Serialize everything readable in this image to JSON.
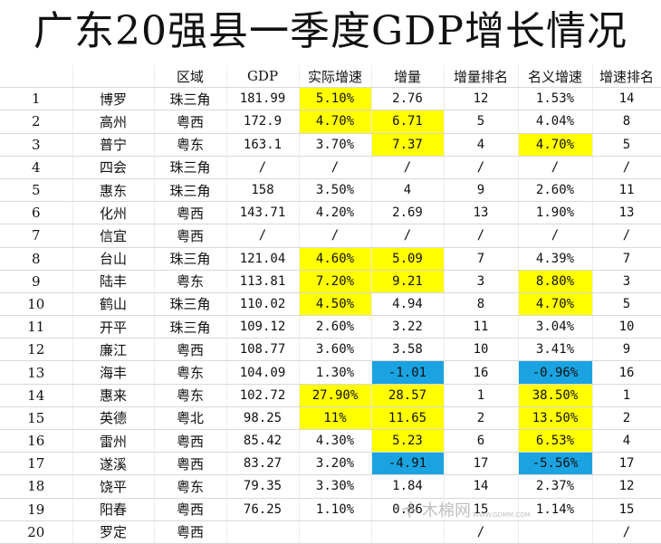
{
  "title": "广东20强县一季度GDP增长情况",
  "headers": [
    "",
    "",
    "区域",
    "GDP",
    "实际增速",
    "增量",
    "增量排名",
    "名义增速",
    "增速排名"
  ],
  "rows": [
    {
      "rank": "1",
      "name": "博罗",
      "region": "珠三角",
      "gdp": "181.99",
      "real": "5.10%",
      "inc": "2.76",
      "inc_rank": "12",
      "nominal": "1.53%",
      "growth_rank": "14"
    },
    {
      "rank": "2",
      "name": "高州",
      "region": "粤西",
      "gdp": "172.9",
      "real": "4.70%",
      "inc": "6.71",
      "inc_rank": "5",
      "nominal": "4.04%",
      "growth_rank": "8"
    },
    {
      "rank": "3",
      "name": "普宁",
      "region": "粤东",
      "gdp": "163.1",
      "real": "3.70%",
      "inc": "7.37",
      "inc_rank": "4",
      "nominal": "4.70%",
      "growth_rank": "5"
    },
    {
      "rank": "4",
      "name": "四会",
      "region": "珠三角",
      "gdp": "/",
      "real": "/",
      "inc": "/",
      "inc_rank": "/",
      "nominal": "/",
      "growth_rank": "/"
    },
    {
      "rank": "5",
      "name": "惠东",
      "region": "珠三角",
      "gdp": "158",
      "real": "3.50%",
      "inc": "4",
      "inc_rank": "9",
      "nominal": "2.60%",
      "growth_rank": "11"
    },
    {
      "rank": "6",
      "name": "化州",
      "region": "粤西",
      "gdp": "143.71",
      "real": "4.20%",
      "inc": "2.69",
      "inc_rank": "13",
      "nominal": "1.90%",
      "growth_rank": "13"
    },
    {
      "rank": "7",
      "name": "信宜",
      "region": "粤西",
      "gdp": "/",
      "real": "/",
      "inc": "/",
      "inc_rank": "/",
      "nominal": "/",
      "growth_rank": "/"
    },
    {
      "rank": "8",
      "name": "台山",
      "region": "珠三角",
      "gdp": "121.04",
      "real": "4.60%",
      "inc": "5.09",
      "inc_rank": "7",
      "nominal": "4.39%",
      "growth_rank": "7"
    },
    {
      "rank": "9",
      "name": "陆丰",
      "region": "粤东",
      "gdp": "113.81",
      "real": "7.20%",
      "inc": "9.21",
      "inc_rank": "3",
      "nominal": "8.80%",
      "growth_rank": "3"
    },
    {
      "rank": "10",
      "name": "鹤山",
      "region": "珠三角",
      "gdp": "110.02",
      "real": "4.50%",
      "inc": "4.94",
      "inc_rank": "8",
      "nominal": "4.70%",
      "growth_rank": "5"
    },
    {
      "rank": "11",
      "name": "开平",
      "region": "珠三角",
      "gdp": "109.12",
      "real": "2.60%",
      "inc": "3.22",
      "inc_rank": "11",
      "nominal": "3.04%",
      "growth_rank": "10"
    },
    {
      "rank": "12",
      "name": "廉江",
      "region": "粤西",
      "gdp": "108.77",
      "real": "3.60%",
      "inc": "3.58",
      "inc_rank": "10",
      "nominal": "3.41%",
      "growth_rank": "9"
    },
    {
      "rank": "13",
      "name": "海丰",
      "region": "粤东",
      "gdp": "104.09",
      "real": "1.30%",
      "inc": "-1.01",
      "inc_rank": "16",
      "nominal": "-0.96%",
      "growth_rank": "16"
    },
    {
      "rank": "14",
      "name": "惠来",
      "region": "粤东",
      "gdp": "102.72",
      "real": "27.90%",
      "inc": "28.57",
      "inc_rank": "1",
      "nominal": "38.50%",
      "growth_rank": "1"
    },
    {
      "rank": "15",
      "name": "英德",
      "region": "粤北",
      "gdp": "98.25",
      "real": "11%",
      "inc": "11.65",
      "inc_rank": "2",
      "nominal": "13.50%",
      "growth_rank": "2"
    },
    {
      "rank": "16",
      "name": "雷州",
      "region": "粤西",
      "gdp": "85.42",
      "real": "4.30%",
      "inc": "5.23",
      "inc_rank": "6",
      "nominal": "6.53%",
      "growth_rank": "4"
    },
    {
      "rank": "17",
      "name": "遂溪",
      "region": "粤西",
      "gdp": "83.27",
      "real": "3.20%",
      "inc": "-4.91",
      "inc_rank": "17",
      "nominal": "-5.56%",
      "growth_rank": "17"
    },
    {
      "rank": "18",
      "name": "饶平",
      "region": "粤东",
      "gdp": "79.35",
      "real": "3.30%",
      "inc": "1.84",
      "inc_rank": "14",
      "nominal": "2.37%",
      "growth_rank": "12"
    },
    {
      "rank": "19",
      "name": "阳春",
      "region": "粤西",
      "gdp": "76.25",
      "real": "1.10%",
      "inc": "0.86",
      "inc_rank": "15",
      "nominal": "1.14%",
      "growth_rank": "15"
    },
    {
      "rank": "20",
      "name": "罗定",
      "region": "粤西",
      "gdp": "",
      "real": "",
      "inc": "",
      "inc_rank": "/",
      "nominal": "",
      "growth_rank": "/"
    }
  ],
  "highlights": {
    "yellow": "#ffff00",
    "blue": "#1aa3e0",
    "real": [
      0,
      1,
      7,
      8,
      9,
      13,
      14
    ],
    "inc_yellow": [
      1,
      2,
      7,
      8,
      13,
      14,
      15
    ],
    "inc_blue": [
      12,
      16
    ],
    "nominal_yellow": [
      2,
      8,
      9,
      13,
      14,
      15
    ],
    "nominal_blue": [
      12,
      16
    ]
  },
  "watermark": {
    "text": "WWW.GDMM.COM",
    "glyphs": "木棉网",
    "icon": "kapok-flower-logo"
  }
}
